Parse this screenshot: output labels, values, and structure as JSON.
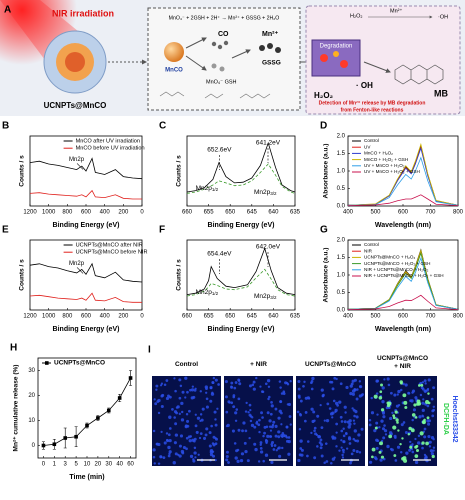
{
  "schematic": {
    "label": "A",
    "nir": "NIR irradiation",
    "particle": "UCNPTs@MnCO",
    "equation": "MnO₄⁻ + 2GSH + 2H⁺ → Mn²⁺ + GSSG + 2H₂O",
    "mnco": "MnCO",
    "co": "CO",
    "mn": "Mn²⁺",
    "gssg": "GSSG",
    "mno4_gsh": "MnO₄⁻  GSH",
    "h2o2_top": "H₂O₂",
    "mn_top": "Mn²⁺",
    "oh_top": "·OH",
    "degradation": "Degradation",
    "oh": "· OH",
    "h2o2": "H₂O₂",
    "mb": "MB",
    "detection": [
      "Detection of Mn²⁺ release by MB degradation",
      "from Fenton-like reactions"
    ]
  },
  "chart_data": [
    {
      "label": "B",
      "type": "line",
      "xlabel": "Binding Energy (eV)",
      "ylabel": "Counts / s",
      "xlim": [
        1200,
        0
      ],
      "xticks": [
        1200,
        1000,
        800,
        600,
        400,
        200,
        0
      ],
      "ylim": [
        0,
        100
      ],
      "legend": "upper-right",
      "x": [
        1200,
        1100,
        1000,
        900,
        800,
        700,
        645,
        600,
        535,
        500,
        400,
        285,
        200,
        100,
        0
      ],
      "series": [
        {
          "name": "MnCO after UV irradiation",
          "color": "#000000",
          "values": [
            62,
            64,
            60,
            58,
            55,
            52,
            57,
            50,
            68,
            48,
            45,
            52,
            42,
            40,
            39
          ]
        },
        {
          "name": "MnCO before UV irradiation",
          "color": "#e0201c",
          "values": [
            18,
            19,
            17,
            16,
            15,
            14,
            16,
            13,
            22,
            13,
            12,
            16,
            11,
            10,
            10
          ]
        }
      ],
      "marker": "Mn2p"
    },
    {
      "label": "C",
      "type": "line",
      "xlabel": "Binding Energy (eV)",
      "ylabel": "Counts / s",
      "xlim": [
        660,
        635
      ],
      "xticks": [
        660,
        655,
        650,
        645,
        640,
        635
      ],
      "ylim": [
        0,
        100
      ],
      "x": [
        660,
        658,
        656,
        654,
        652.6,
        651,
        649,
        647,
        645,
        643,
        641.2,
        639.5,
        638,
        636,
        635
      ],
      "series": [
        {
          "color": "#000000",
          "values": [
            20,
            22,
            26,
            38,
            62,
            42,
            33,
            34,
            40,
            58,
            90,
            55,
            30,
            22,
            20
          ]
        },
        {
          "color": "#3a9a2a",
          "dash": true,
          "values": [
            18,
            20,
            24,
            30,
            36,
            33,
            29,
            30,
            36,
            48,
            60,
            44,
            28,
            20,
            18
          ]
        }
      ],
      "peaks": [
        "652.6eV",
        "641.2eV"
      ],
      "fit_labels": [
        {
          "text": "Mn2p",
          "sub": "1/2"
        },
        {
          "text": "Mn2p",
          "sub": "3/2"
        }
      ]
    },
    {
      "label": "D",
      "type": "line",
      "xlabel": "Wavelength (nm)",
      "ylabel": "Absorbance (a.u.)",
      "xlim": [
        400,
        800
      ],
      "xticks": [
        400,
        500,
        600,
        700,
        800
      ],
      "ylim": [
        0,
        2
      ],
      "yticks": [
        {
          "value": 0,
          "label": "0.0"
        },
        0.5,
        {
          "value": 1,
          "label": "1.0"
        },
        1.5,
        {
          "value": 2,
          "label": "2.0"
        }
      ],
      "legend": "upper-left",
      "x": [
        400,
        500,
        550,
        580,
        610,
        630,
        645,
        665,
        690,
        720,
        800
      ],
      "series": [
        {
          "name": "Control",
          "color": "#000000",
          "values": [
            0.02,
            0.05,
            0.3,
            0.75,
            1.12,
            0.95,
            1.25,
            1.72,
            0.9,
            0.15,
            0.02
          ]
        },
        {
          "name": "UV",
          "color": "#e0201c",
          "values": [
            0.02,
            0.05,
            0.29,
            0.73,
            1.1,
            0.93,
            1.22,
            1.68,
            0.88,
            0.15,
            0.02
          ]
        },
        {
          "name": "MnCO + H₂O₂",
          "color": "#2a3ad0",
          "values": [
            0.02,
            0.05,
            0.29,
            0.72,
            1.08,
            0.92,
            1.2,
            1.65,
            0.86,
            0.14,
            0.02
          ]
        },
        {
          "name": "MnCO + H₂O₂ + GSH",
          "color": "#c9b400",
          "values": [
            0.02,
            0.06,
            0.31,
            0.77,
            1.15,
            0.98,
            1.28,
            1.76,
            0.92,
            0.16,
            0.02
          ]
        },
        {
          "name": "UV + MnCO + H₂O₂",
          "color": "#2fa0e8",
          "values": [
            0.02,
            0.04,
            0.24,
            0.6,
            0.9,
            0.77,
            1.0,
            1.38,
            0.72,
            0.12,
            0.02
          ]
        },
        {
          "name": "UV + MnCO + H₂O₂ + GSH",
          "color": "#c8104c",
          "values": [
            0.01,
            0.03,
            0.08,
            0.15,
            0.2,
            0.2,
            0.25,
            0.32,
            0.2,
            0.05,
            0.01
          ]
        }
      ]
    },
    {
      "label": "E",
      "type": "line",
      "xlabel": "Binding Energy (eV)",
      "ylabel": "Counts / s",
      "xlim": [
        1200,
        0
      ],
      "xticks": [
        1200,
        1000,
        800,
        600,
        400,
        200,
        0
      ],
      "ylim": [
        0,
        100
      ],
      "legend": "upper-right",
      "x": [
        1200,
        1100,
        1000,
        900,
        800,
        700,
        645,
        600,
        535,
        500,
        400,
        285,
        200,
        100,
        0
      ],
      "series": [
        {
          "name": "UCNPTs@MnCO after NIR",
          "color": "#000000",
          "values": [
            64,
            66,
            62,
            60,
            56,
            53,
            58,
            51,
            66,
            49,
            46,
            54,
            43,
            41,
            40
          ]
        },
        {
          "name": "UCNPTs@MnCO before NIR",
          "color": "#e0201c",
          "values": [
            20,
            21,
            19,
            17,
            16,
            15,
            17,
            14,
            24,
            14,
            13,
            18,
            12,
            11,
            11
          ]
        }
      ],
      "marker": "Mn2p"
    },
    {
      "label": "F",
      "type": "line",
      "xlabel": "Binding Energy (eV)",
      "ylabel": "Counts / s",
      "xlim": [
        660,
        635
      ],
      "xticks": [
        660,
        655,
        650,
        645,
        640,
        635
      ],
      "ylim": [
        0,
        100
      ],
      "x": [
        660,
        658,
        656,
        655,
        654.4,
        653,
        651,
        649,
        646,
        644,
        642,
        640.5,
        639,
        637,
        635
      ],
      "series": [
        {
          "color": "#000000",
          "values": [
            22,
            24,
            30,
            42,
            62,
            45,
            34,
            32,
            36,
            55,
            88,
            56,
            32,
            24,
            22
          ]
        },
        {
          "color": "#3a9a2a",
          "dash": true,
          "values": [
            20,
            22,
            27,
            33,
            38,
            35,
            30,
            29,
            33,
            46,
            58,
            44,
            29,
            22,
            20
          ]
        }
      ],
      "peaks": [
        "654.4eV",
        "642.0eV"
      ],
      "fit_labels": [
        {
          "text": "Mn2p",
          "sub": "1/2"
        },
        {
          "text": "Mn2p",
          "sub": "3/2"
        }
      ]
    },
    {
      "label": "G",
      "type": "line",
      "xlabel": "Wavelength (nm)",
      "ylabel": "Absorbance (a.u.)",
      "xlim": [
        400,
        800
      ],
      "xticks": [
        400,
        500,
        600,
        700,
        800
      ],
      "ylim": [
        0,
        2
      ],
      "yticks": [
        {
          "value": 0,
          "label": "0.0"
        },
        0.5,
        {
          "value": 1,
          "label": "1.0"
        },
        1.5,
        {
          "value": 2,
          "label": "2.0"
        }
      ],
      "legend": "upper-left",
      "x": [
        400,
        500,
        550,
        580,
        610,
        630,
        645,
        665,
        690,
        720,
        800
      ],
      "series": [
        {
          "name": "Control",
          "color": "#000000",
          "values": [
            0.02,
            0.05,
            0.3,
            0.75,
            1.12,
            0.95,
            1.25,
            1.72,
            0.9,
            0.15,
            0.02
          ]
        },
        {
          "name": "NIR",
          "color": "#e0201c",
          "values": [
            0.02,
            0.05,
            0.29,
            0.72,
            1.08,
            0.92,
            1.21,
            1.66,
            0.87,
            0.14,
            0.02
          ]
        },
        {
          "name": "UCNPTs@MnCO + H₂O₂",
          "color": "#c9b400",
          "values": [
            0.02,
            0.05,
            0.3,
            0.74,
            1.1,
            0.94,
            1.23,
            1.7,
            0.89,
            0.15,
            0.02
          ]
        },
        {
          "name": "UCNPTs@MnCO + H₂O₂ + GSH",
          "color": "#3a9a2a",
          "values": [
            0.02,
            0.05,
            0.28,
            0.7,
            1.05,
            0.9,
            1.17,
            1.62,
            0.85,
            0.14,
            0.02
          ]
        },
        {
          "name": "NIR + UCNPTs@MnCO + H₂O₂",
          "color": "#2fa0e8",
          "values": [
            0.02,
            0.04,
            0.26,
            0.64,
            0.96,
            0.82,
            1.07,
            1.48,
            0.78,
            0.13,
            0.02
          ]
        },
        {
          "name": "NIR + UCNPTs@MnCO + H₂O₂ + GSH",
          "color": "#c8104c",
          "values": [
            0.01,
            0.03,
            0.1,
            0.2,
            0.28,
            0.27,
            0.33,
            0.42,
            0.25,
            0.06,
            0.01
          ]
        }
      ]
    },
    {
      "label": "H",
      "type": "errorbar",
      "xlabel": "Time (min)",
      "ylabel": "Mn²⁺ cumulative release (%)",
      "categories": [
        "0",
        "1",
        "3",
        "5",
        "10",
        "20",
        "30",
        "40",
        "60"
      ],
      "ylim": [
        -5,
        35
      ],
      "yticks": [
        0,
        10,
        20,
        30
      ],
      "legend": "upper-left",
      "series": [
        {
          "name": "UCNPTs@MnCO",
          "color": "#000000",
          "values": [
            0,
            0.5,
            3,
            3.5,
            8,
            11,
            14,
            19,
            27
          ],
          "errors": [
            1.5,
            2,
            4,
            4,
            1,
            1,
            1,
            1.5,
            3
          ]
        }
      ]
    }
  ],
  "images": {
    "label": "I",
    "titles": [
      "Control",
      "+ NIR",
      "UCNPTs@MnCO",
      "UCNPTs@MnCO\n+ NIR"
    ],
    "channels": [
      "Hoechst33342",
      "DCFH-DA"
    ]
  }
}
